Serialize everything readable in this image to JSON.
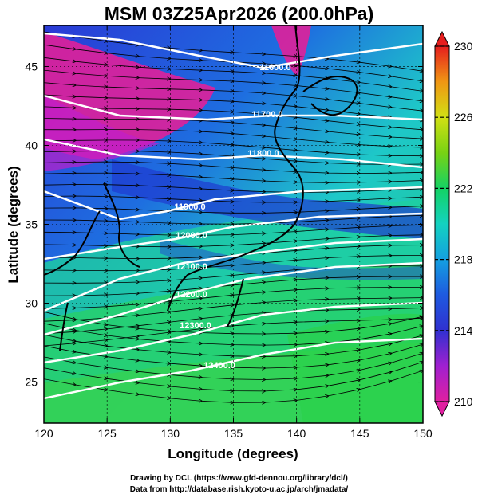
{
  "title": "MSM 03Z25Apr2026 (200.0hPa)",
  "map": {
    "x_label": "Longitude (degrees)",
    "y_label": "Latitude  (degrees)",
    "x_ticks": [
      120,
      125,
      130,
      135,
      140,
      145,
      150
    ],
    "y_ticks": [
      25,
      30,
      35,
      40,
      45
    ],
    "x_range": [
      120,
      150
    ],
    "y_range": [
      22.4,
      47.6
    ],
    "contour_labels": [
      "11600.0",
      "11700.0",
      "11800.0",
      "11900.0",
      "12000.0",
      "12100.0",
      "12200.0",
      "12300.0",
      "12400.0"
    ]
  },
  "colorbar": {
    "min": 210,
    "max": 230,
    "tick_labels": [
      "230",
      "226",
      "222",
      "218",
      "214",
      "210"
    ],
    "colors": [
      "#e8208c",
      "#c020c8",
      "#6a1ec8",
      "#1e3ad0",
      "#1e6ee0",
      "#14a8e0",
      "#14d2c8",
      "#14d296",
      "#28d250",
      "#50d214",
      "#a0dc14",
      "#d2e614",
      "#f0c814",
      "#f09614",
      "#e65014",
      "#dc1e1e"
    ]
  },
  "credits": {
    "line1": "Drawing by DCL (https://www.gfd-dennou.org/library/dcl/)",
    "line2": "Data from http://database.rish.kyoto-u.ac.jp/arch/jmadata/"
  }
}
